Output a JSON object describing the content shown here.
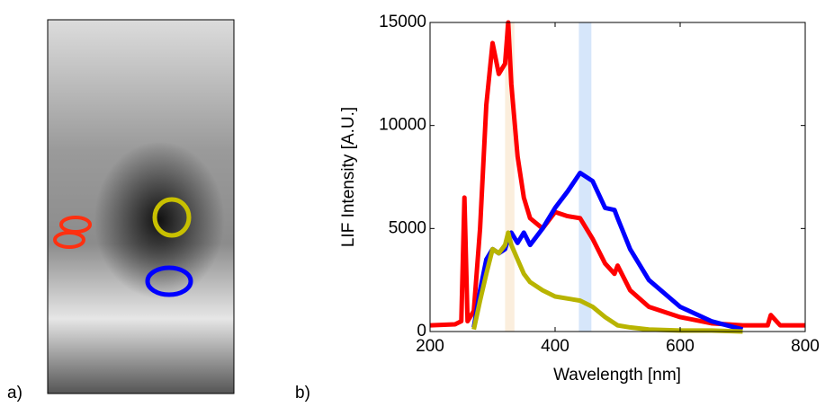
{
  "panel_labels": [
    "a)",
    "b)"
  ],
  "chart_data": {
    "type": "line",
    "xlabel": "Wavelength [nm]",
    "ylabel": "LIF Intensity [A.U.]",
    "x": [
      200,
      240,
      250,
      255,
      260,
      270,
      280,
      290,
      300,
      310,
      320,
      325,
      330,
      340,
      350,
      360,
      380,
      400,
      420,
      440,
      460,
      480,
      495,
      500,
      520,
      550,
      600,
      650,
      700,
      740,
      745,
      760,
      800
    ],
    "series": [
      {
        "color": "#ff0000",
        "values": [
          300,
          350,
          500,
          6500,
          500,
          1000,
          5000,
          11000,
          14000,
          12500,
          13000,
          15000,
          12000,
          8500,
          6500,
          5500,
          5000,
          5800,
          5600,
          5500,
          4500,
          3300,
          2800,
          3200,
          2000,
          1200,
          700,
          400,
          300,
          300,
          800,
          300,
          300
        ]
      },
      {
        "color": "#0000ff",
        "values": [
          null,
          null,
          null,
          null,
          null,
          200,
          2000,
          3500,
          4000,
          3800,
          4000,
          4500,
          4800,
          4300,
          4800,
          4200,
          5000,
          6000,
          6800,
          7700,
          7300,
          6000,
          5900,
          5500,
          4000,
          2500,
          1200,
          500,
          100,
          null,
          null,
          null,
          null
        ]
      },
      {
        "color": "#b8b400",
        "values": [
          null,
          null,
          null,
          null,
          null,
          100,
          1500,
          2800,
          4000,
          3800,
          4200,
          4800,
          4200,
          3500,
          2800,
          2400,
          2000,
          1700,
          1600,
          1500,
          1200,
          700,
          400,
          300,
          200,
          100,
          50,
          50,
          0,
          null,
          null,
          null,
          null
        ]
      }
    ],
    "highlight_bands": [
      {
        "xlim": [
          320,
          335
        ],
        "color": "#fbeedd"
      },
      {
        "xlim": [
          438,
          458
        ],
        "color": "#d6e6fa"
      }
    ],
    "xlim": [
      200,
      800
    ],
    "xticks": [
      200,
      400,
      600,
      800
    ],
    "ylim": [
      0,
      15000
    ],
    "yticks": [
      0,
      5000,
      10000,
      15000
    ],
    "grid": false
  }
}
